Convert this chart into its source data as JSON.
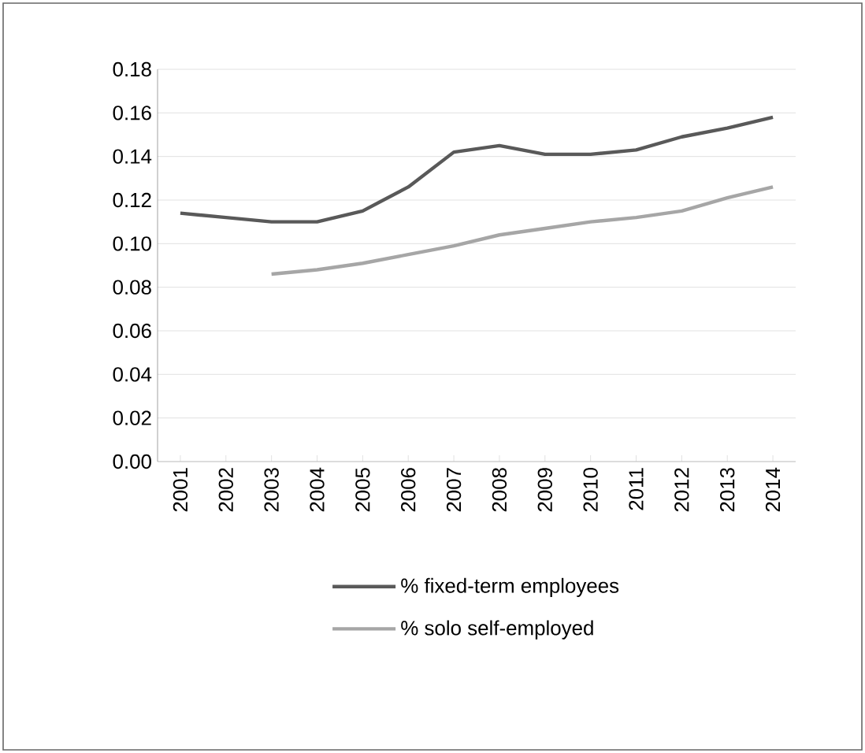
{
  "chart_data": {
    "type": "line",
    "categories": [
      "2001",
      "2002",
      "2003",
      "2004",
      "2005",
      "2006",
      "2007",
      "2008",
      "2009",
      "2010",
      "2011",
      "2012",
      "2013",
      "2014"
    ],
    "series": [
      {
        "name": "% fixed-term employees",
        "color": "#595959",
        "values": [
          0.114,
          0.112,
          0.11,
          0.11,
          0.115,
          0.126,
          0.142,
          0.145,
          0.141,
          0.141,
          0.143,
          0.149,
          0.153,
          0.158
        ]
      },
      {
        "name": "% solo self-employed",
        "color": "#a6a6a6",
        "values": [
          null,
          null,
          0.086,
          0.088,
          0.091,
          0.095,
          0.099,
          0.104,
          0.107,
          0.11,
          0.112,
          0.115,
          0.121,
          0.126
        ]
      }
    ],
    "ylim": [
      0,
      0.18
    ],
    "yticks": [
      {
        "value": 0,
        "label": "0.00"
      },
      {
        "value": 0.02,
        "label": "0.02"
      },
      {
        "value": 0.04,
        "label": "0.04"
      },
      {
        "value": 0.06,
        "label": "0.06"
      },
      {
        "value": 0.08,
        "label": "0.08"
      },
      {
        "value": 0.1,
        "label": "0.10"
      },
      {
        "value": 0.12,
        "label": "0.12"
      },
      {
        "value": 0.14,
        "label": "0.14"
      },
      {
        "value": 0.16,
        "label": "0.16"
      },
      {
        "value": 0.18,
        "label": "0.18"
      }
    ],
    "grid": "y",
    "legend": "bottom",
    "marker": "none",
    "line_style": "solid"
  }
}
